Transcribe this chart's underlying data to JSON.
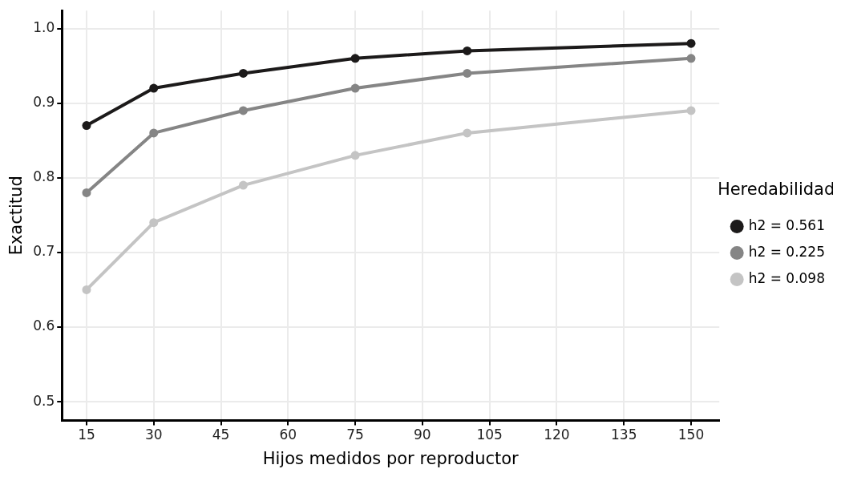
{
  "chart_data": {
    "type": "line",
    "xlabel": "Hijos medidos por reproductor",
    "ylabel": "Exactitud",
    "legend_title": "Heredabilidad",
    "x": [
      15,
      30,
      50,
      75,
      100,
      150
    ],
    "series": [
      {
        "name": "h2 = 0.561",
        "color": "#1c1a1a",
        "values": [
          0.87,
          0.92,
          0.94,
          0.96,
          0.97,
          0.98
        ]
      },
      {
        "name": "h2 = 0.225",
        "color": "#858585",
        "values": [
          0.78,
          0.86,
          0.89,
          0.92,
          0.94,
          0.96
        ]
      },
      {
        "name": "h2 = 0.098",
        "color": "#c4c4c4",
        "values": [
          0.65,
          0.74,
          0.79,
          0.83,
          0.86,
          0.89
        ]
      }
    ],
    "xlim": [
      9.5,
      156.3
    ],
    "xticks": [
      15,
      30,
      45,
      60,
      75,
      90,
      105,
      120,
      135,
      150
    ],
    "ylim": [
      0.475,
      1.024
    ],
    "yticks": [
      {
        "value": 0.5,
        "label": "0.5"
      },
      {
        "value": 0.6,
        "label": "0.6"
      },
      {
        "value": 0.7,
        "label": "0.7"
      },
      {
        "value": 0.8,
        "label": "0.8"
      },
      {
        "value": 0.9,
        "label": "0.9"
      },
      {
        "value": 1.0,
        "label": "1.0"
      }
    ],
    "grid": true,
    "legend": "right",
    "marker": "circle",
    "line_style": "solid"
  }
}
